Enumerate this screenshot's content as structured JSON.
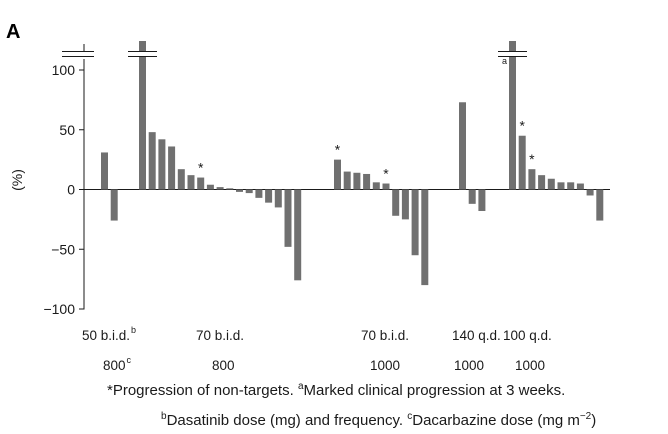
{
  "panel_label": "A",
  "chart_data": {
    "type": "bar",
    "ylabel": "(%)",
    "yticks": [
      100,
      50,
      0,
      -50,
      -100
    ],
    "ytick_labels": [
      "100",
      "50",
      "0",
      "−50",
      "−100"
    ],
    "ylim": [
      -100,
      125
    ],
    "grid": false,
    "legend": "none",
    "bar_color": "#707070",
    "series": [
      {
        "values": [
          31,
          -26,
          125,
          48,
          42,
          36,
          17,
          12,
          10,
          4,
          2,
          1,
          -2,
          -3,
          -7,
          -11,
          -15,
          -48,
          -76,
          25,
          15,
          14,
          13,
          6,
          5,
          -22,
          -25,
          -55,
          -80,
          73,
          -12,
          -18,
          125,
          45,
          17,
          12,
          9,
          6,
          6,
          5,
          -5,
          -26
        ],
        "annotations": [
          null,
          null,
          null,
          null,
          null,
          null,
          null,
          null,
          "*",
          null,
          null,
          null,
          null,
          null,
          null,
          null,
          null,
          null,
          null,
          "*",
          null,
          null,
          null,
          null,
          "*",
          null,
          null,
          null,
          null,
          null,
          null,
          null,
          "a",
          "*",
          "*",
          null,
          null,
          null,
          null,
          null,
          null,
          null
        ],
        "broken_above_axis": [
          false,
          false,
          true,
          false,
          false,
          false,
          false,
          false,
          false,
          false,
          false,
          false,
          false,
          false,
          false,
          false,
          false,
          false,
          false,
          false,
          false,
          false,
          false,
          false,
          false,
          false,
          false,
          false,
          false,
          false,
          false,
          false,
          true,
          false,
          false,
          false,
          false,
          false,
          false,
          false,
          false,
          false
        ]
      }
    ],
    "groups": [
      {
        "dasatinib": "50 b.i.d.",
        "dasatinib_sup": "b",
        "dacarbazine": "800",
        "dacarbazine_sup": "c"
      },
      {
        "dasatinib": "70 b.i.d.",
        "dacarbazine": "800"
      },
      {
        "dasatinib": "70 b.i.d.",
        "dacarbazine": "1000"
      },
      {
        "dasatinib": "140 q.d.",
        "dacarbazine": "1000"
      },
      {
        "dasatinib": "100 q.d.",
        "dacarbazine": "1000"
      }
    ]
  },
  "footnotes": {
    "line1_star": "*Progression of non-targets.",
    "line1_a_sup": "a",
    "line1_a_text": "Marked clinical progression at 3 weeks.",
    "line2_b_sup": "b",
    "line2_b_text": "Dasatinib dose (mg) and frequency.",
    "line2_c_sup": "c",
    "line2_c_text": "Dacarbazine dose (mg m",
    "line2_c_exp": "−2",
    "line2_c_close": ")"
  }
}
